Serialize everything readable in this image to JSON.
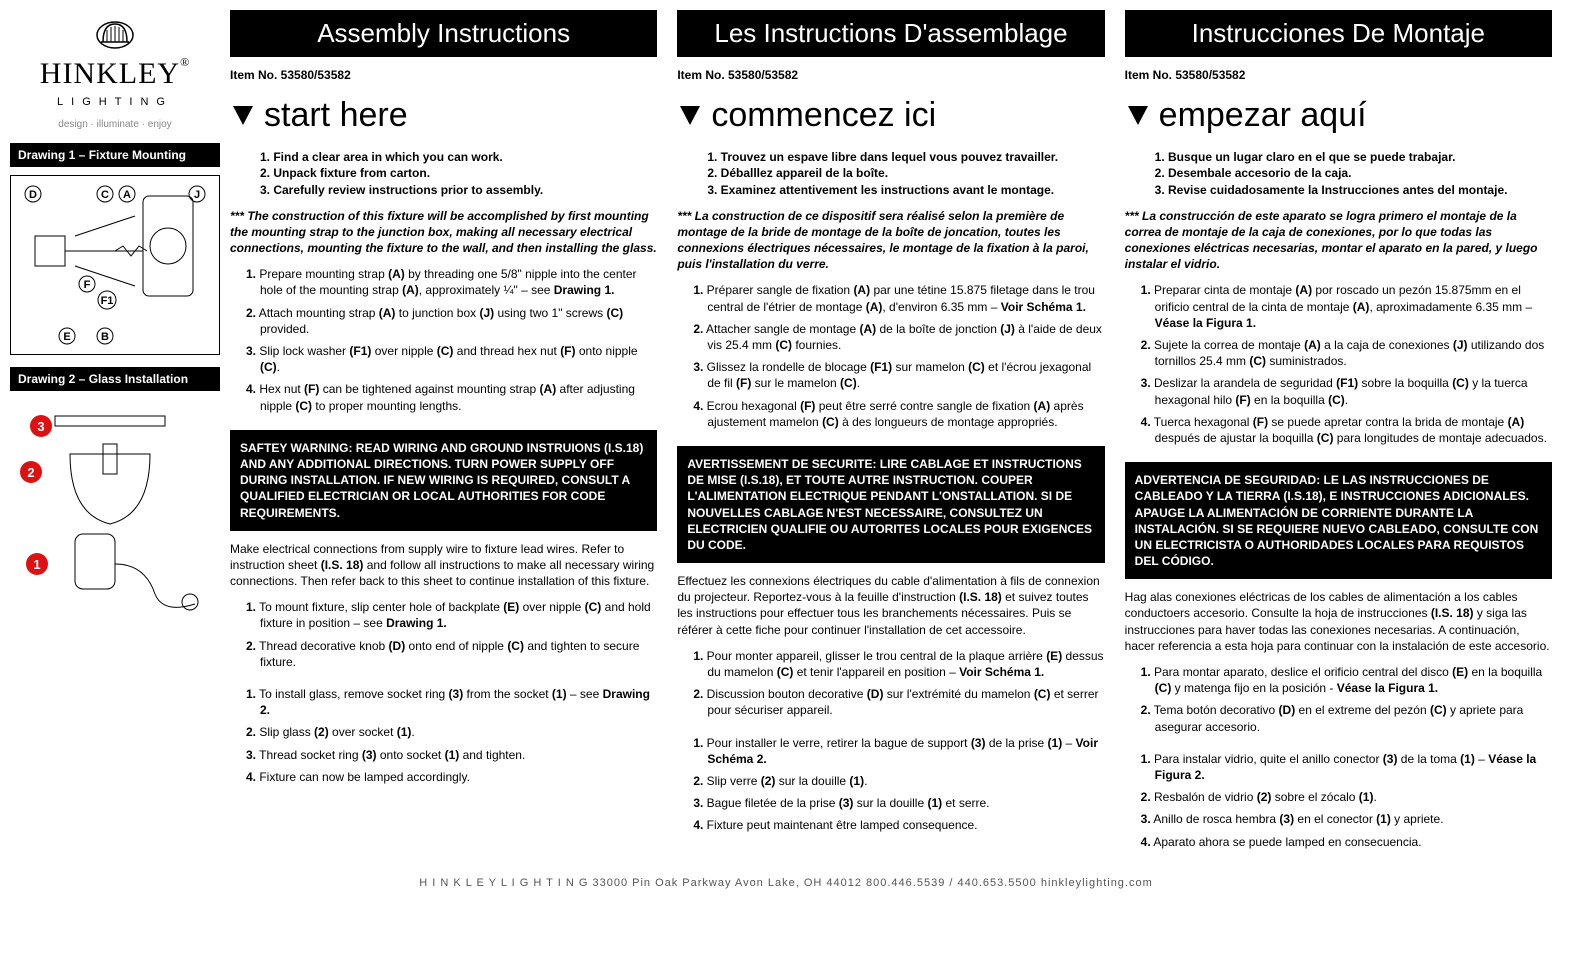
{
  "logo": {
    "brand_top": "HINKLEY",
    "brand_sub": "LIGHTING",
    "tagline": "design · illuminate · enjoy",
    "reg": "®"
  },
  "drawings": {
    "d1_header": "Drawing 1 – Fixture Mounting",
    "d2_header": "Drawing 2 – Glass Installation",
    "d1_labels": [
      "D",
      "C",
      "A",
      "J",
      "F",
      "F1",
      "E",
      "B"
    ],
    "d2_labels": [
      "1",
      "2",
      "3"
    ]
  },
  "columns": [
    {
      "section_title": "Assembly Instructions",
      "item_no": "Item No. 53580/53582",
      "start_here": "start here",
      "start_list": [
        "1. Find a clear area in which you can work.",
        "2. Unpack fixture from carton.",
        "3. Carefully review instructions prior to assembly."
      ],
      "note": "*** The construction of this fixture will be accomplished by first mounting the mounting strap to the junction box, making all necessary electrical connections, mounting the fixture to the wall, and then installing the glass.",
      "steps_a": [
        "1. Prepare mounting strap (A) by threading one 5/8\" nipple into the center hole of the mounting strap (A), approximately ¼\" – see Drawing 1.",
        "2. Attach mounting strap (A) to junction box (J) using two 1\" screws (C) provided.",
        "3. Slip lock washer (F1) over nipple (C) and thread hex nut (F) onto nipple (C).",
        "4. Hex nut (F) can be tightened against mounting strap (A) after adjusting nipple (C) to proper mounting lengths."
      ],
      "warning": "SAFTEY WARNING: READ WIRING AND GROUND INSTRUIONS (I.S.18) AND ANY ADDITIONAL DIRECTIONS. TURN POWER SUPPLY OFF DURING INSTALLATION. IF NEW WIRING IS REQUIRED, CONSULT A QUALIFIED ELECTRICIAN OR LOCAL AUTHORITIES FOR CODE REQUIREMENTS.",
      "elec_para": "Make electrical connections from supply wire to fixture lead wires. Refer to instruction sheet (I.S. 18) and follow all instructions to make all necessary wiring connections. Then refer back to this sheet to continue installation of this fixture.",
      "steps_b": [
        "1. To mount fixture, slip center hole of backplate (E) over nipple (C) and hold fixture in position – see Drawing 1.",
        "2. Thread decorative knob (D) onto end of nipple (C) and tighten to secure fixture."
      ],
      "steps_c": [
        "1. To install glass, remove socket ring (3) from the socket (1) – see Drawing 2.",
        "2. Slip glass (2) over socket (1).",
        "3. Thread socket ring (3) onto socket (1) and tighten.",
        "4. Fixture can now be lamped accordingly."
      ]
    },
    {
      "section_title": "Les Instructions D'assemblage",
      "item_no": "Item No. 53580/53582",
      "start_here": "commencez ici",
      "start_list": [
        "1. Trouvez un espave libre dans lequel vous pouvez travailler.",
        "2. Déballlez appareil de la boîte.",
        "3. Examinez attentivement les instructions avant le montage."
      ],
      "note": "*** La construction de ce dispositif sera réalisé selon la première de montage de la bride de montage de la boîte de joncation, toutes les connexions électriques nécessaires, le montage de la fixation à la paroi, puis l'installation du verre.",
      "steps_a": [
        "1. Préparer sangle de fixation (A) par une tétine 15.875 filetage dans le trou central de l'étrier de montage (A), d'environ 6.35 mm – Voir Schéma 1.",
        "2. Attacher sangle de montage (A) de la boîte de jonction (J) à l'aide de deux vis 25.4 mm (C) fournies.",
        "3. Glissez la rondelle de blocage (F1) sur mamelon (C) et l'écrou jexagonal de fil (F) sur le mamelon (C).",
        "4. Ecrou hexagonal (F) peut être serré contre sangle de fixation (A) après ajustement mamelon (C) à des longueurs de montage appropriés."
      ],
      "warning": "AVERTISSEMENT DE SECURITE: LIRE CABLAGE ET INSTRUCTIONS DE MISE (I.S.18), ET TOUTE AUTRE INSTRUCTION. COUPER L'ALIMENTATION ELECTRIQUE PENDANT L'ONSTALLATION. SI DE NOUVELLES CABLAGE N'EST NECESSAIRE, CONSULTEZ UN ELECTRICIEN QUALIFIE OU AUTORITES LOCALES POUR EXIGENCES DU CODE.",
      "elec_para": "Effectuez les connexions électriques du cable d'alimentation à fils de connexion du projecteur. Reportez-vous à la feuille d'instruction (I.S. 18) et suivez toutes les instructions pour effectuer tous les branchements nécessaires. Puis se référer à cette fiche pour continuer l'installation de cet accessoire.",
      "steps_b": [
        "1. Pour monter appareil, glisser le trou central de la plaque arrière (E) dessus du mamelon (C) et tenir l'appareil en position – Voir Schéma 1.",
        "2. Discussion bouton decorative (D) sur l'extrémité du mamelon (C) et serrer pour sécuriser appareil."
      ],
      "steps_c": [
        "1. Pour installer le verre, retirer la bague de support (3) de la prise (1) – Voir Schéma 2.",
        "2. Slip verre (2) sur la douille (1).",
        "3. Bague filetée de la prise (3) sur la douille (1) et serre.",
        "4. Fixture peut maintenant être lamped consequence."
      ]
    },
    {
      "section_title": "Instrucciones De Montaje",
      "item_no": "Item No. 53580/53582",
      "start_here": "empezar aquí",
      "start_list": [
        "1. Busque un lugar claro en el que se puede trabajar.",
        "2. Desembale accesorio de la caja.",
        "3. Revise cuidadosamente la Instrucciones antes del montaje."
      ],
      "note": "*** La construcción de este aparato se logra primero el montaje de la correa de montaje de la caja de conexiones, por lo que todas las conexiones eléctricas necesarias, montar el aparato en la pared, y luego instalar el vidrio.",
      "steps_a": [
        "1. Preparar cinta de montaje (A) por roscado un pezón 15.875mm en el orificio central de la cinta de montaje (A), aproximadamente 6.35 mm – Véase la Figura 1.",
        "2. Sujete la correa de montaje (A) a la caja de conexiones (J) utilizando dos tornillos 25.4 mm (C) suministrados.",
        "3. Deslizar la arandela de seguridad (F1) sobre la boquilla (C) y la tuerca hexagonal hilo (F) en la boquilla (C).",
        "4. Tuerca hexagonal (F) se puede apretar contra la brida de montaje (A) después de ajustar la boquilla (C) para longitudes de montaje adecuados."
      ],
      "warning": "ADVERTENCIA DE SEGURIDAD: LE LAS INSTRUCCIONES DE CABLEADO Y LA TIERRA (I.S.18), E INSTRUCCIONES ADICIONALES. APAUGE LA ALIMENTACIÓN DE CORRIENTE DURANTE LA INSTALACIÓN. SI SE REQUIERE NUEVO CABLEADO, CONSULTE CON UN ELECTRICISTA O AUTHORIDADES LOCALES PARA REQUISTOS DEL CÓDIGO.",
      "elec_para": "Hag alas conexiones eléctricas de los cables de alimentación a los cables conductoers accesorio. Consulte la hoja de instrucciones (I.S. 18) y siga las instrucciones para haver todas las conexiones necesarias. A continuación, hacer referencia a esta hoja para continuar con la instalación de este accesorio.",
      "steps_b": [
        "1. Para montar aparato, deslice el orificio central del disco (E) en la boquilla (C) y matenga fijo en la posición -  Véase la Figura 1.",
        "2. Tema botón decorativo (D) en el extreme del pezón  (C) y apriete para asegurar accesorio."
      ],
      "steps_c": [
        "1. Para instalar vidrio, quite el anillo conector (3) de la toma (1) – Véase la Figura 2.",
        "2. Resbalón de vidrio (2) sobre el zócalo (1).",
        "3. Anillo de rosca hembra (3) en el conector (1) y apriete.",
        "4. Aparato ahora se puede lamped en consecuencia."
      ]
    }
  ],
  "footer": "H I N K L E Y  L I G H T I N G      33000 Pin Oak Parkway   Avon Lake, OH  44012     800.446.5539 / 440.653.5500    hinkleylighting.com"
}
